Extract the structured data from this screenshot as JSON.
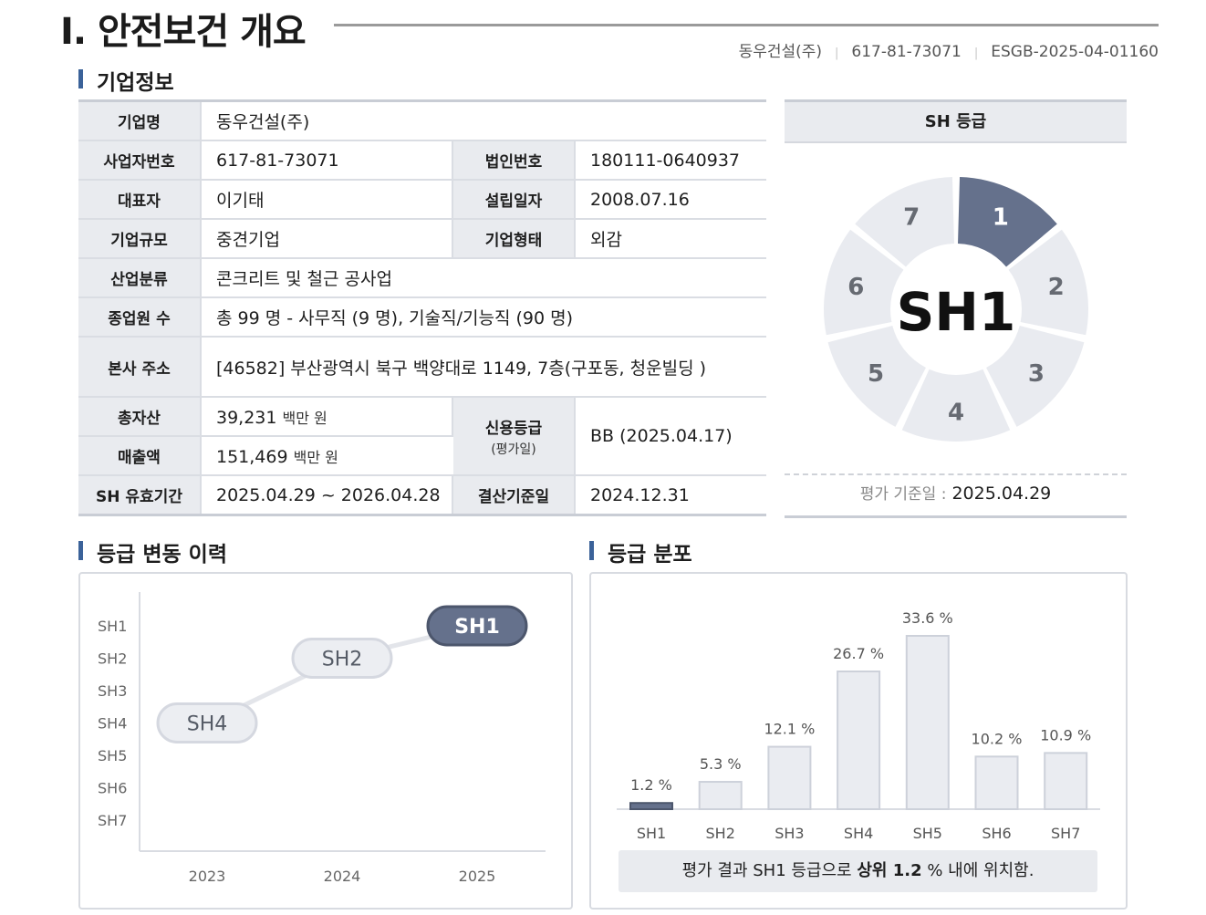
{
  "header": {
    "title": "Ⅰ. 안전보건 개요",
    "company": "동우건설(주)",
    "biz_no": "617-81-73071",
    "doc_id": "ESGB-2025-04-01160"
  },
  "sections": {
    "company_info": "기업정보",
    "grade_history": "등급 변동 이력",
    "grade_distribution": "등급 분포"
  },
  "info": {
    "company_name_label": "기업명",
    "company_name": "동우건설(주)",
    "biz_no_label": "사업자번호",
    "biz_no": "617-81-73071",
    "corp_no_label": "법인번호",
    "corp_no": "180111-0640937",
    "ceo_label": "대표자",
    "ceo": "이기태",
    "est_label": "설립일자",
    "est": "2008.07.16",
    "scale_label": "기업규모",
    "scale": "중견기업",
    "type_label": "기업형태",
    "type": "외감",
    "industry_label": "산업분류",
    "industry": "콘크리트 및 철근 공사업",
    "employees_label": "종업원 수",
    "employees": "총 99 명 -  사무직 (9 명), 기술직/기능직 (90 명)",
    "address_label": "본사 주소",
    "address": "[46582] 부산광역시 북구 백양대로 1149, 7층(구포동, 청운빌딩 )",
    "assets_label": "총자산",
    "assets": "39,231",
    "assets_unit": "백만 원",
    "sales_label": "매출액",
    "sales": "151,469",
    "sales_unit": "백만 원",
    "credit_label": "신용등급",
    "credit_sub": "(평가일)",
    "credit": "BB (2025.04.17)",
    "validity_label": "SH 유효기간",
    "validity": "2025.04.29 ~ 2026.04.28",
    "closing_label": "결산기준일",
    "closing": "2024.12.31"
  },
  "sh_card": {
    "title": "SH 등급",
    "grade": "SH1",
    "active_segment": 1,
    "segments": [
      "1",
      "2",
      "3",
      "4",
      "5",
      "6",
      "7"
    ],
    "date_label": "평가 기준일 :",
    "date": "2025.04.29",
    "active_color": "#65718c",
    "inactive_color": "#e9ebf0"
  },
  "history_chart": {
    "type": "line",
    "y_labels": [
      "SH1",
      "SH2",
      "SH3",
      "SH4",
      "SH5",
      "SH6",
      "SH7"
    ],
    "x_labels": [
      "2023",
      "2024",
      "2025"
    ],
    "points": [
      {
        "year": "2023",
        "grade": "SH4"
      },
      {
        "year": "2024",
        "grade": "SH2"
      },
      {
        "year": "2025",
        "grade": "SH1"
      }
    ]
  },
  "chart_data": {
    "type": "bar",
    "categories": [
      "SH1",
      "SH2",
      "SH3",
      "SH4",
      "SH5",
      "SH6",
      "SH7"
    ],
    "values": [
      1.2,
      5.3,
      12.1,
      26.7,
      33.6,
      10.2,
      10.9
    ],
    "value_labels": [
      "1.2 %",
      "5.3 %",
      "12.1 %",
      "26.7 %",
      "33.6 %",
      "10.2 %",
      "10.9 %"
    ],
    "highlight_index": 0,
    "ylim": [
      0,
      33.6
    ],
    "xlabel": "",
    "ylabel": ""
  },
  "note": {
    "prefix": "평가 결과 SH1 등급으로 ",
    "bold": "상위 1.2",
    "suffix": " % 내에 위치함."
  }
}
